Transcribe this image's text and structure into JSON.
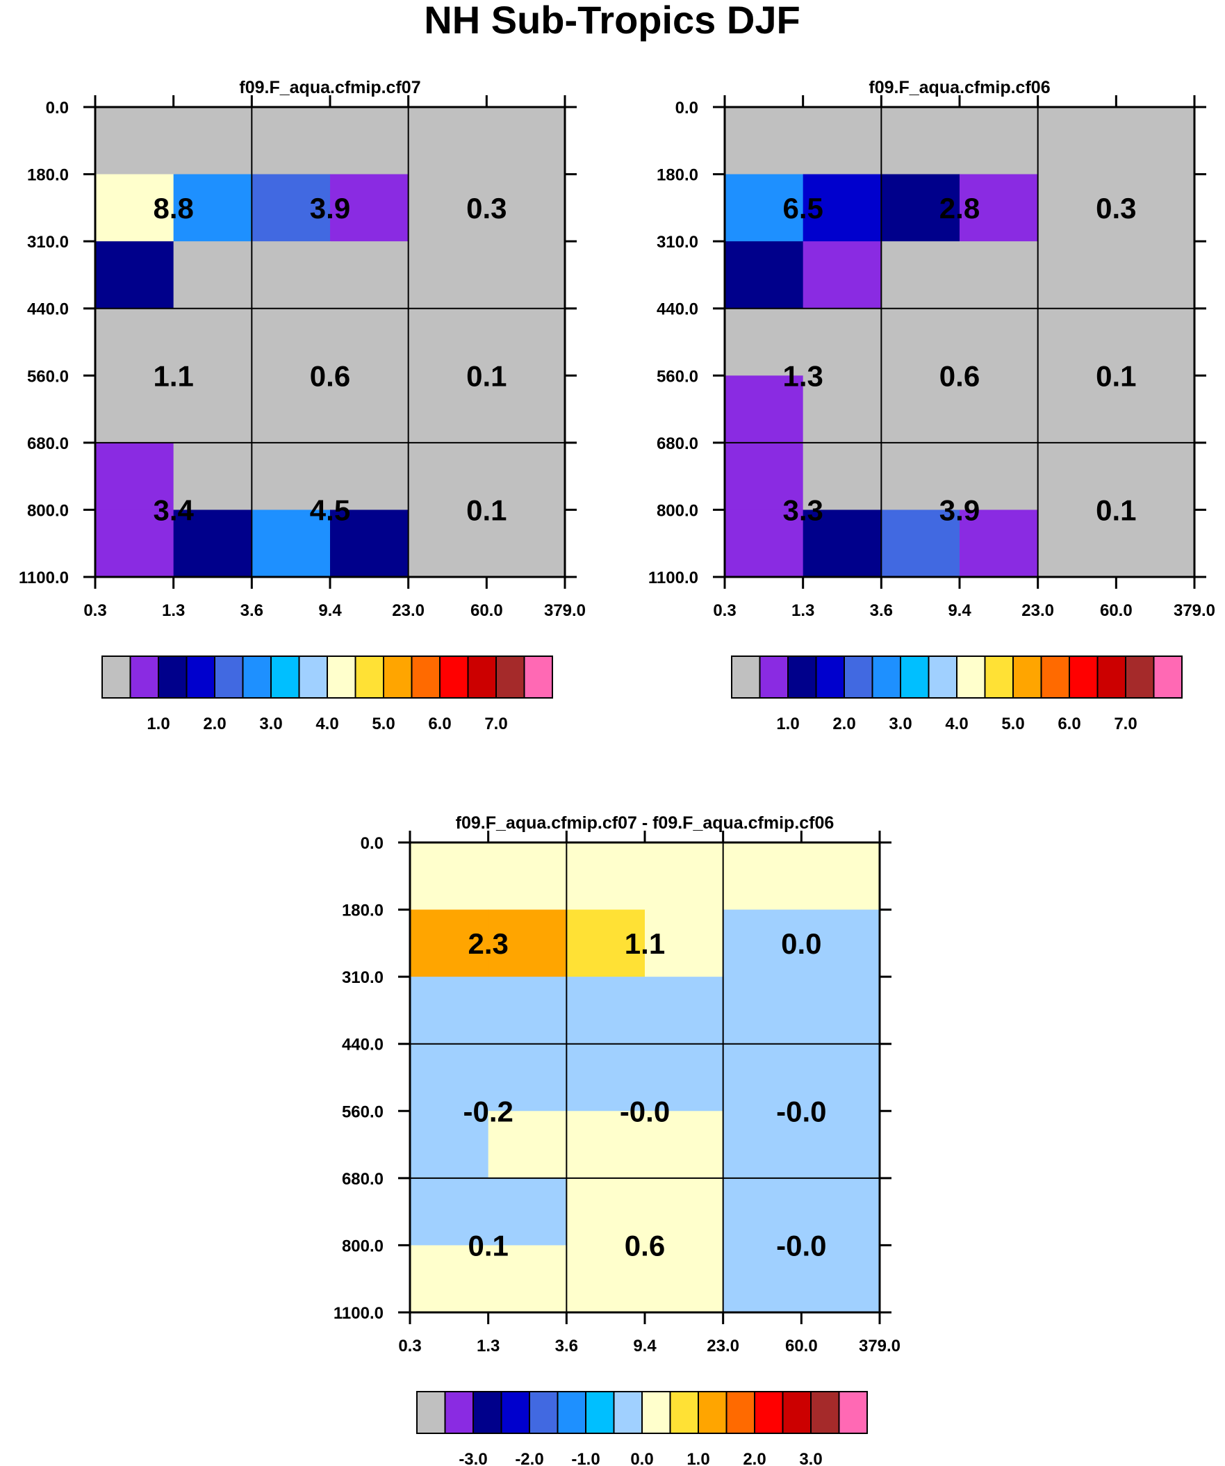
{
  "title": "NH Sub-Tropics DJF",
  "palette": [
    "#c0c0c0",
    "#8a2be2",
    "#00008b",
    "#0000cd",
    "#4169e1",
    "#1e90ff",
    "#00bfff",
    "#a0d0ff",
    "#ffffcc",
    "#ffe135",
    "#ffa500",
    "#ff6a00",
    "#ff0000",
    "#cc0000",
    "#a52a2a",
    "#ff69b4"
  ],
  "chart_data": [
    {
      "type": "heatmap",
      "title": "f09.F_aqua.cfmip.cf07",
      "x_ticks": [
        "0.3",
        "1.3",
        "3.6",
        "9.4",
        "23.0",
        "60.0",
        "379.0"
      ],
      "y_ticks": [
        "0.0",
        "180.0",
        "310.0",
        "440.0",
        "560.0",
        "680.0",
        "800.0",
        "1100.0"
      ],
      "cells": [
        [
          0,
          0,
          0,
          0,
          0,
          0
        ],
        [
          8,
          5,
          4,
          1,
          0,
          0
        ],
        [
          2,
          0,
          0,
          0,
          0,
          0
        ],
        [
          0,
          0,
          0,
          0,
          0,
          0
        ],
        [
          0,
          0,
          0,
          0,
          0,
          0
        ],
        [
          1,
          0,
          0,
          0,
          0,
          0
        ],
        [
          1,
          2,
          5,
          2,
          0,
          0
        ]
      ],
      "group_values": [
        [
          "8.8",
          "3.9",
          "0.3"
        ],
        [
          "1.1",
          "0.6",
          "0.1"
        ],
        [
          "3.4",
          "4.5",
          "0.1"
        ]
      ],
      "colorbar_labels": [
        "1.0",
        "2.0",
        "3.0",
        "4.0",
        "5.0",
        "6.0",
        "7.0"
      ]
    },
    {
      "type": "heatmap",
      "title": "f09.F_aqua.cfmip.cf06",
      "x_ticks": [
        "0.3",
        "1.3",
        "3.6",
        "9.4",
        "23.0",
        "60.0",
        "379.0"
      ],
      "y_ticks": [
        "0.0",
        "180.0",
        "310.0",
        "440.0",
        "560.0",
        "680.0",
        "800.0",
        "1100.0"
      ],
      "cells": [
        [
          0,
          0,
          0,
          0,
          0,
          0
        ],
        [
          5,
          3,
          2,
          1,
          0,
          0
        ],
        [
          2,
          1,
          0,
          0,
          0,
          0
        ],
        [
          0,
          0,
          0,
          0,
          0,
          0
        ],
        [
          1,
          0,
          0,
          0,
          0,
          0
        ],
        [
          1,
          0,
          0,
          0,
          0,
          0
        ],
        [
          1,
          2,
          4,
          1,
          0,
          0
        ]
      ],
      "group_values": [
        [
          "6.5",
          "2.8",
          "0.3"
        ],
        [
          "1.3",
          "0.6",
          "0.1"
        ],
        [
          "3.3",
          "3.9",
          "0.1"
        ]
      ],
      "colorbar_labels": [
        "1.0",
        "2.0",
        "3.0",
        "4.0",
        "5.0",
        "6.0",
        "7.0"
      ]
    },
    {
      "type": "heatmap",
      "title": "f09.F_aqua.cfmip.cf07 - f09.F_aqua.cfmip.cf06",
      "x_ticks": [
        "0.3",
        "1.3",
        "3.6",
        "9.4",
        "23.0",
        "60.0",
        "379.0"
      ],
      "y_ticks": [
        "0.0",
        "180.0",
        "310.0",
        "440.0",
        "560.0",
        "680.0",
        "800.0",
        "1100.0"
      ],
      "cells": [
        [
          8,
          8,
          8,
          8,
          8,
          8
        ],
        [
          10,
          10,
          9,
          8,
          7,
          7
        ],
        [
          7,
          7,
          7,
          7,
          7,
          7
        ],
        [
          7,
          7,
          7,
          7,
          7,
          7
        ],
        [
          7,
          8,
          8,
          8,
          7,
          7
        ],
        [
          7,
          7,
          8,
          8,
          7,
          7
        ],
        [
          8,
          8,
          8,
          8,
          7,
          7
        ]
      ],
      "group_values": [
        [
          "2.3",
          "1.1",
          "0.0"
        ],
        [
          "-0.2",
          "-0.0",
          "-0.0"
        ],
        [
          "0.1",
          "0.6",
          "-0.0"
        ]
      ],
      "colorbar_labels": [
        "-3.0",
        "-2.0",
        "-1.0",
        "0.0",
        "1.0",
        "2.0",
        "3.0"
      ]
    }
  ]
}
